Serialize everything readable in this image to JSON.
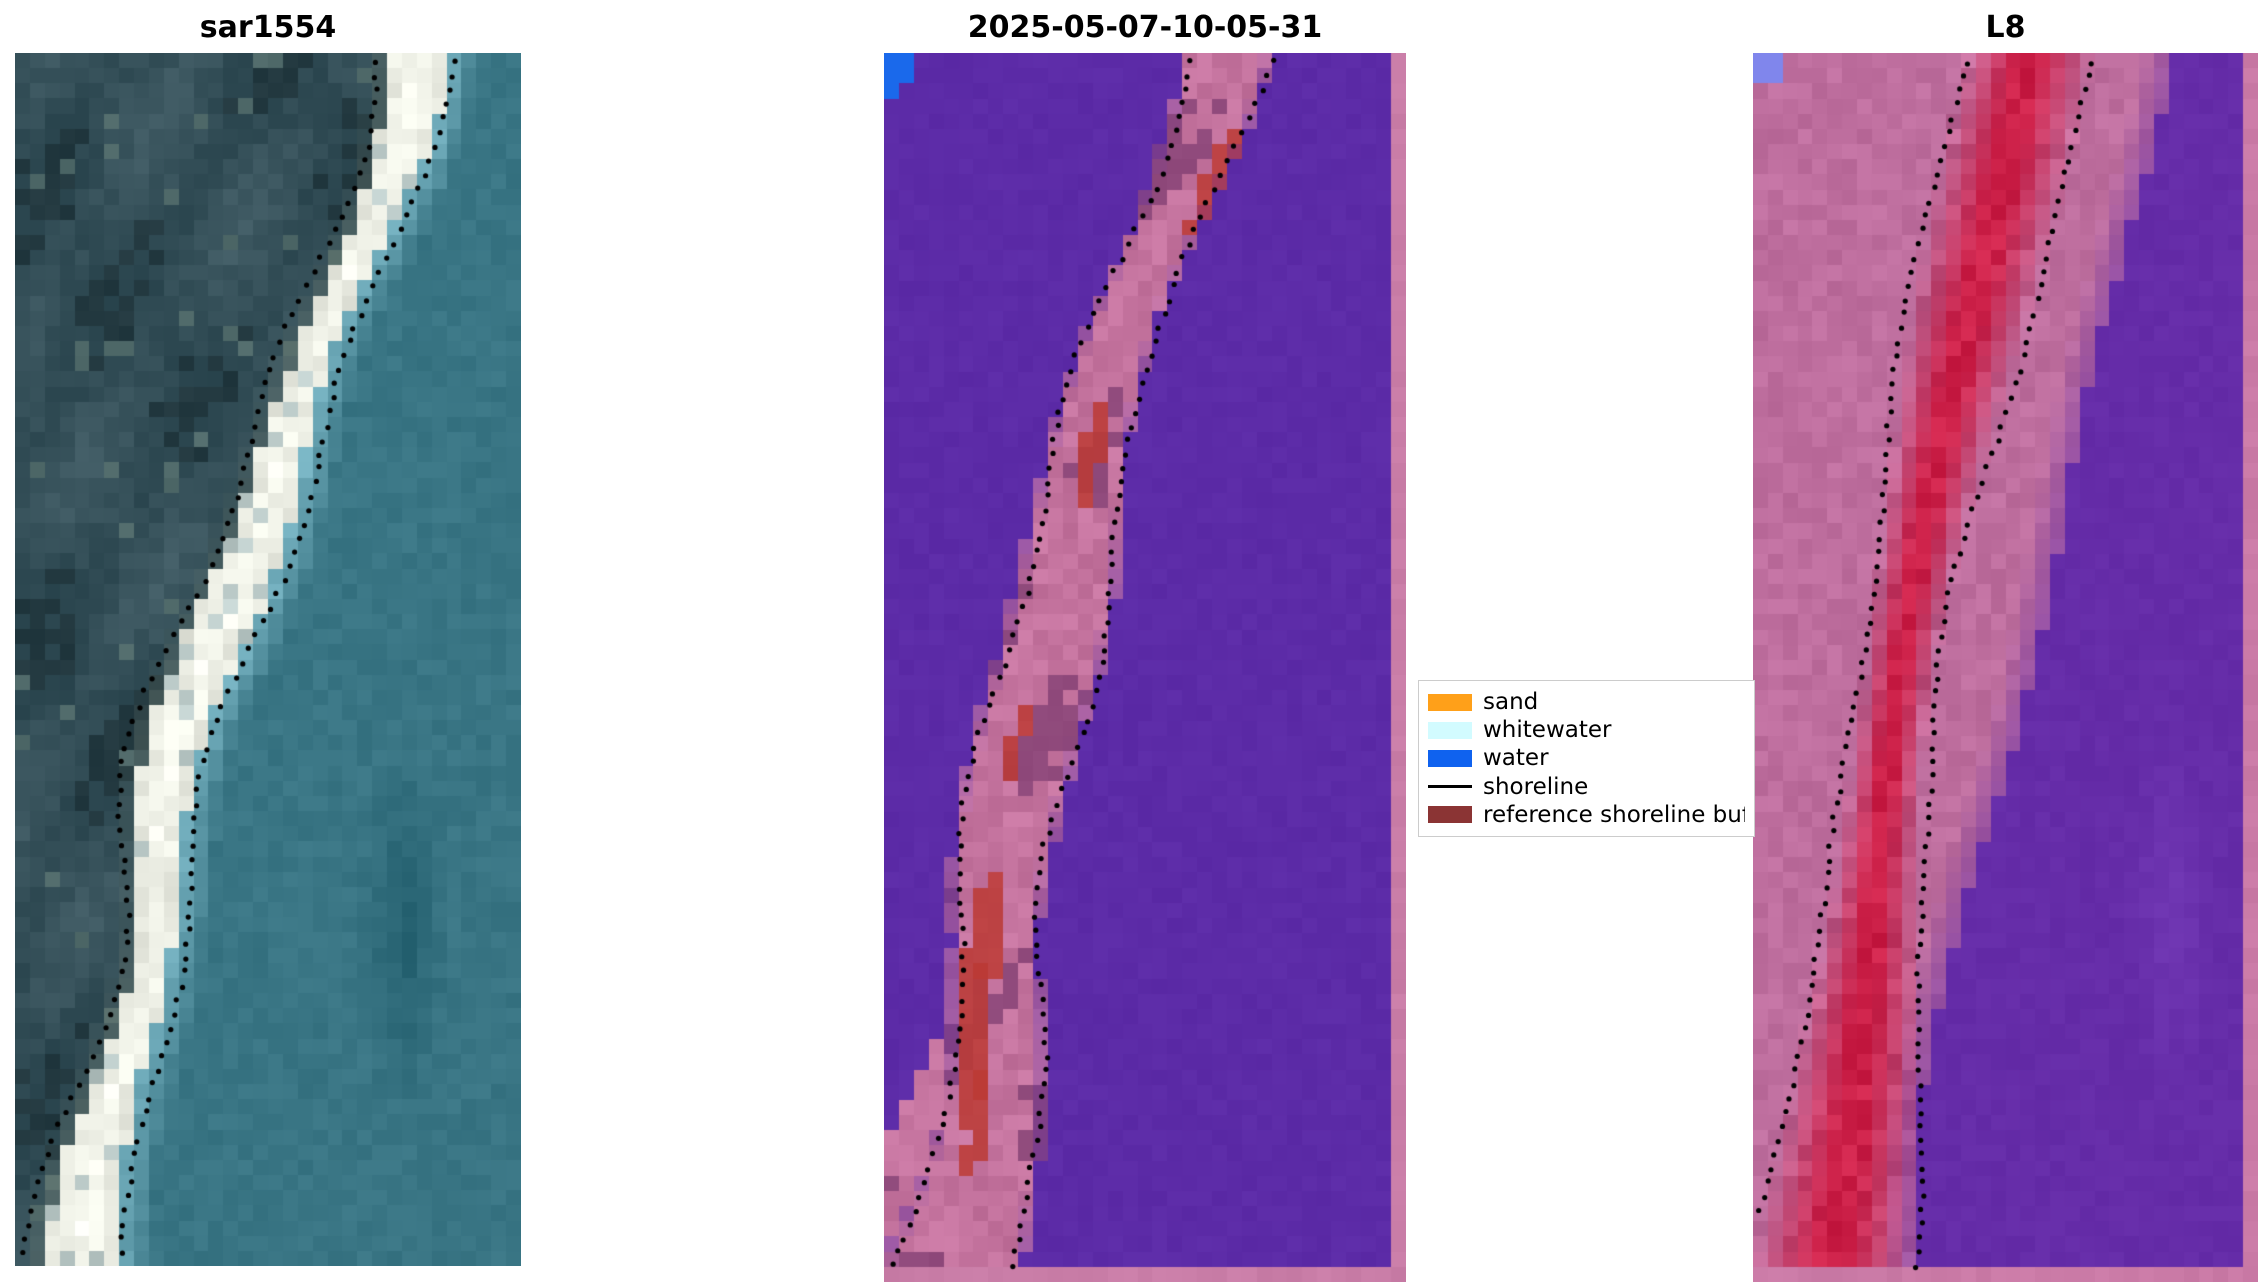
{
  "figure": {
    "background": "#ffffff",
    "panels": [
      {
        "title": "sar1554",
        "kind": "satellite-image",
        "palette": {
          "land": "#324d56",
          "land_dark": "#22383f",
          "land_light": "#506a6a",
          "sand": "#eef0e6",
          "ocean": "#3a7888",
          "foam": "#c9ddd5",
          "shoreline_dots": "#000000"
        }
      },
      {
        "title": "2025-05-07-10-05-31",
        "kind": "classification-map",
        "palette": {
          "background": "#5c2ba7",
          "buffer": "#c4739e",
          "buffer_dark": "#7e3c70",
          "sand_red": "#bc3a34",
          "water": "#1a69eb",
          "frame": "#c97da7",
          "shoreline_dots": "#000000"
        }
      },
      {
        "title": "L8",
        "kind": "classification-map",
        "palette": {
          "background": "#652ca8",
          "buffer": "#be6e9e",
          "sand_red": "#cc2048",
          "frame": "#ca7aa6",
          "corner": "#8086ec",
          "shoreline_dots": "#000000"
        }
      }
    ],
    "legend": {
      "border_color": "#cccccc",
      "entries": [
        {
          "label": "sand",
          "type": "patch",
          "color": "#ffa019"
        },
        {
          "label": "whitewater",
          "type": "patch",
          "color": "#d2fbff"
        },
        {
          "label": "water",
          "type": "patch",
          "color": "#0f62ef"
        },
        {
          "label": "shoreline",
          "type": "line",
          "color": "#000000"
        },
        {
          "label": "reference shoreline buffer",
          "type": "patch",
          "color": "#8b3434"
        }
      ]
    }
  },
  "chart_data": {
    "type": "heatmap",
    "title": "",
    "subtitle": "",
    "panels": [
      {
        "title": "sar1554",
        "description": "Pixelated satellite/SAR image of a coast: dark mottled teal land on the left, bright white sandy beach band running diagonally from top-right to bottom-left, uniform teal ocean on the right with a dark smudge lower-right; two dotted black shoreline transect lines follow the beach."
      },
      {
        "title": "2025-05-07-10-05-31",
        "description": "Image classification overlay: purple (other/water class) background, semi-transparent pink reference-shoreline-buffer band running diagonally from upper-middle to lower-left with darker maroon patches and several bright red 'sand' patches, a small blue 'water' patch in the top-left corner, pink frame on right and bottom edges, dotted black shoreline along both band edges."
      },
      {
        "title": "L8",
        "description": "Landsat-8 classification overlay: broad pink buffer occupying the left half narrowing downward, a bright red-crimson core band through it, purple background on the right with a faint lighter smudge, small lavender-blue patch top-left, pink frame on right and bottom edges, dotted black shoreline lines along the red core."
      }
    ],
    "legend_entries": [
      "sand",
      "whitewater",
      "water",
      "shoreline",
      "reference shoreline buffer"
    ],
    "legend_position": "center-right, between second and third panel (last label clipped)",
    "axes": "none (image subplots, axes hidden)",
    "grid": false
  }
}
